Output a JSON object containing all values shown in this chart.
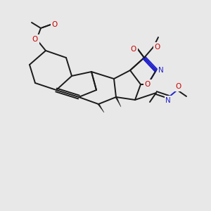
{
  "background_color": "#e8e8e8",
  "figsize": [
    3.0,
    3.0
  ],
  "dpi": 100,
  "bond_color": "#1a1a1a",
  "bond_width": 1.3,
  "heteroatom_colors": {
    "O": "#cc0000",
    "N": "#2222cc"
  }
}
